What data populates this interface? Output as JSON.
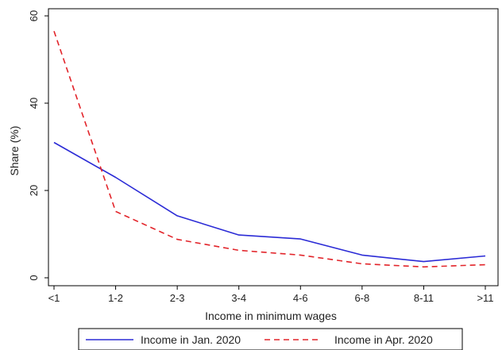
{
  "chart_data": {
    "type": "line",
    "categories": [
      "<1",
      "1-2",
      "2-3",
      "3-4",
      "4-6",
      "6-8",
      "8-11",
      ">11"
    ],
    "series": [
      {
        "name": "Income in Jan. 2020",
        "color": "#2b2bd6",
        "dash": "solid",
        "values": [
          31,
          23,
          14.2,
          9.8,
          8.9,
          5.2,
          3.7,
          5.0
        ]
      },
      {
        "name": "Income in Apr. 2020",
        "color": "#e2242a",
        "dash": "dashed",
        "values": [
          56.5,
          15.2,
          8.8,
          6.3,
          5.2,
          3.2,
          2.5,
          3.0
        ]
      }
    ],
    "xlabel": "Income in minimum wages",
    "ylabel": "Share (%)",
    "ylim": [
      0,
      60
    ],
    "yticks": [
      0,
      20,
      40,
      60
    ],
    "grid": false,
    "legend_position": "bottom"
  }
}
